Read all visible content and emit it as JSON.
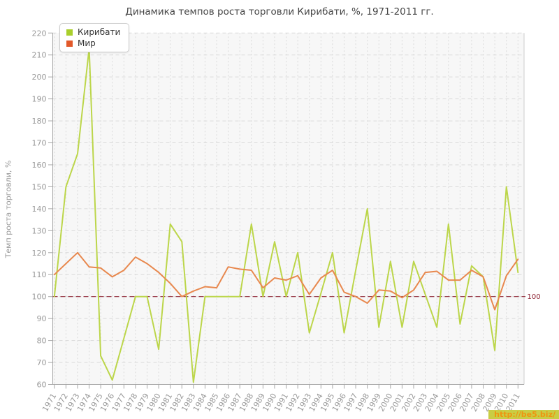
{
  "title": "Динамика темпов роста торговли Кирибати, %, 1971-2011 гг.",
  "legend": {
    "items": [
      {
        "label": "Кирибати",
        "color": "#a9cf2c"
      },
      {
        "label": "Мир",
        "color": "#e2592a"
      }
    ]
  },
  "y_axis": {
    "title": "Темп роста торговли, %",
    "min": 60,
    "max": 220,
    "step": 10
  },
  "reference_line": {
    "value": 100,
    "label": "100",
    "color": "#8e2433"
  },
  "watermark": {
    "text": "http://be5.biz/",
    "bg_color": "#c9cd44",
    "text_color": "#ef9410"
  },
  "colors": {
    "kiribati_line": "#bcd64a",
    "mir_line": "#e8884e",
    "plot_bg": "#f7f7f7",
    "grid": "#d9d9d9",
    "axis": "#a6a6a6",
    "tick_text": "#999999"
  },
  "chart_data": {
    "type": "line",
    "title": "Динамика темпов роста торговли Кирибати, %, 1971-2011 гг.",
    "xlabel": "",
    "ylabel": "Темп роста торговли, %",
    "ylim": [
      60,
      220
    ],
    "y_tick_step": 10,
    "grid": true,
    "legend_position": "top-left",
    "reference_line": 100,
    "x": [
      1971,
      1972,
      1973,
      1974,
      1975,
      1976,
      1977,
      1978,
      1979,
      1980,
      1981,
      1982,
      1983,
      1984,
      1985,
      1986,
      1987,
      1988,
      1989,
      1990,
      1991,
      1992,
      1993,
      1994,
      1995,
      1996,
      1997,
      1998,
      1999,
      2000,
      2001,
      2002,
      2003,
      2004,
      2005,
      2006,
      2007,
      2008,
      2009,
      2010,
      2011
    ],
    "series": [
      {
        "name": "Кирибати",
        "color": "#bcd64a",
        "values": [
          100,
          150,
          165,
          213,
          73,
          62,
          81,
          100,
          100,
          76,
          133,
          125,
          61,
          100,
          100,
          100,
          100,
          133,
          100,
          125,
          100,
          120,
          83.5,
          101.5,
          120,
          83.5,
          112,
          140,
          86,
          116,
          86,
          116,
          101,
          86,
          133,
          87.5,
          114,
          109,
          75.5,
          150,
          111
        ]
      },
      {
        "name": "Мир",
        "color": "#e8884e",
        "values": [
          110,
          115,
          120,
          113.5,
          113,
          109,
          112,
          118,
          115,
          111,
          106,
          100,
          102.5,
          104.5,
          104,
          113.5,
          112.5,
          112,
          104,
          108.5,
          107.5,
          109.5,
          101,
          108.5,
          112,
          102,
          100,
          97,
          103,
          102.5,
          99.5,
          103,
          111,
          111.5,
          107.5,
          107.5,
          112,
          109,
          94,
          109.5,
          117
        ]
      }
    ]
  }
}
